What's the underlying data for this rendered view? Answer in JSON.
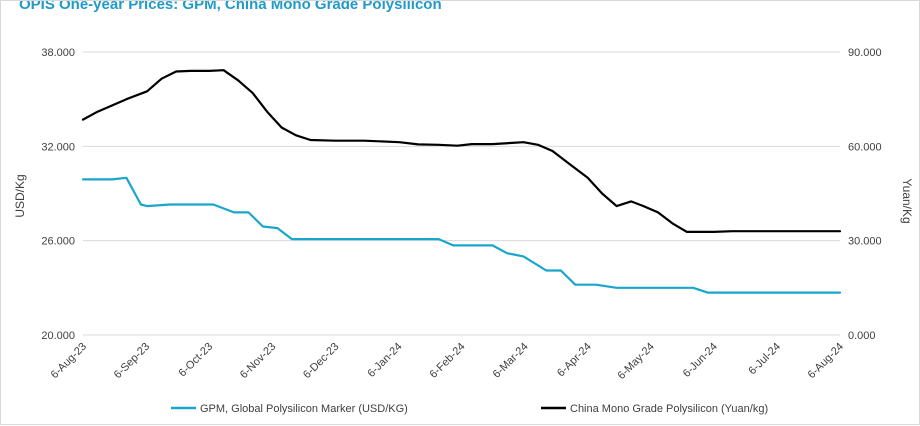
{
  "chart_data": {
    "type": "line",
    "title": "OPIS One-year Prices: GPM, China Mono Grade Polysilicon",
    "x_ticks": [
      "6-Aug-23",
      "6-Sep-23",
      "6-Oct-23",
      "6-Nov-23",
      "6-Dec-23",
      "6-Jan-24",
      "6-Feb-24",
      "6-Mar-24",
      "6-Apr-24",
      "6-May-24",
      "6-Jun-24",
      "6-Jul-24",
      "6-Aug-24"
    ],
    "left_axis": {
      "label": "USD/Kg",
      "ylim": [
        20,
        38
      ],
      "ticks": [
        "20.000",
        "26.000",
        "32.000",
        "38.000"
      ]
    },
    "right_axis": {
      "label": "Yuan/Kg",
      "ylim": [
        0,
        90
      ],
      "ticks": [
        "0.000",
        "30.000",
        "60.000",
        "90.000"
      ]
    },
    "grid": "horizontal",
    "legend_position": "bottom",
    "colors": {
      "gpm": "#1aa5cd",
      "china": "#000000",
      "grid": "#d9d9d9",
      "title": "#1f9ac9"
    },
    "series": [
      {
        "name": "GPM, Global Polysilicon Marker (USD/KG)",
        "axis": "left",
        "points": [
          [
            "2023-08-06",
            29.9
          ],
          [
            "2023-08-20",
            29.9
          ],
          [
            "2023-08-27",
            30.0
          ],
          [
            "2023-09-03",
            28.3
          ],
          [
            "2023-09-06",
            28.2
          ],
          [
            "2023-09-17",
            28.3
          ],
          [
            "2023-09-30",
            28.3
          ],
          [
            "2023-10-08",
            28.3
          ],
          [
            "2023-10-18",
            27.8
          ],
          [
            "2023-10-25",
            27.8
          ],
          [
            "2023-11-01",
            26.9
          ],
          [
            "2023-11-08",
            26.8
          ],
          [
            "2023-11-15",
            26.1
          ],
          [
            "2023-11-29",
            26.1
          ],
          [
            "2023-12-06",
            26.1
          ],
          [
            "2024-01-06",
            26.1
          ],
          [
            "2024-01-25",
            26.1
          ],
          [
            "2024-02-01",
            25.7
          ],
          [
            "2024-02-20",
            25.7
          ],
          [
            "2024-02-27",
            25.2
          ],
          [
            "2024-03-06",
            25.0
          ],
          [
            "2024-03-17",
            24.1
          ],
          [
            "2024-03-24",
            24.1
          ],
          [
            "2024-03-31",
            23.2
          ],
          [
            "2024-04-10",
            23.2
          ],
          [
            "2024-04-20",
            23.0
          ],
          [
            "2024-05-20",
            23.0
          ],
          [
            "2024-05-27",
            23.0
          ],
          [
            "2024-06-03",
            22.7
          ],
          [
            "2024-06-13",
            22.7
          ],
          [
            "2024-08-06",
            22.7
          ]
        ]
      },
      {
        "name": "China Mono Grade Polysilicon (Yuan/kg)",
        "axis": "right",
        "points": [
          [
            "2023-08-06",
            68.5
          ],
          [
            "2023-08-13",
            71
          ],
          [
            "2023-08-20",
            73
          ],
          [
            "2023-08-27",
            75
          ],
          [
            "2023-09-06",
            77.5
          ],
          [
            "2023-09-13",
            81.5
          ],
          [
            "2023-09-20",
            83.8
          ],
          [
            "2023-09-27",
            84
          ],
          [
            "2023-10-06",
            84
          ],
          [
            "2023-10-13",
            84.2
          ],
          [
            "2023-10-20",
            81
          ],
          [
            "2023-10-27",
            77
          ],
          [
            "2023-11-03",
            71
          ],
          [
            "2023-11-10",
            66
          ],
          [
            "2023-11-17",
            63.5
          ],
          [
            "2023-11-24",
            62
          ],
          [
            "2023-12-06",
            61.8
          ],
          [
            "2023-12-20",
            61.8
          ],
          [
            "2024-01-06",
            61.3
          ],
          [
            "2024-01-15",
            60.6
          ],
          [
            "2024-01-25",
            60.5
          ],
          [
            "2024-02-03",
            60.2
          ],
          [
            "2024-02-10",
            60.7
          ],
          [
            "2024-02-20",
            60.7
          ],
          [
            "2024-03-06",
            61.3
          ],
          [
            "2024-03-13",
            60.5
          ],
          [
            "2024-03-20",
            58.5
          ],
          [
            "2024-03-27",
            55
          ],
          [
            "2024-04-06",
            50
          ],
          [
            "2024-04-13",
            45
          ],
          [
            "2024-04-20",
            41
          ],
          [
            "2024-04-27",
            42.5
          ],
          [
            "2024-05-03",
            41
          ],
          [
            "2024-05-10",
            39
          ],
          [
            "2024-05-17",
            35.5
          ],
          [
            "2024-05-24",
            32.8
          ],
          [
            "2024-06-06",
            32.8
          ],
          [
            "2024-06-15",
            33
          ],
          [
            "2024-08-06",
            33
          ]
        ]
      }
    ]
  }
}
